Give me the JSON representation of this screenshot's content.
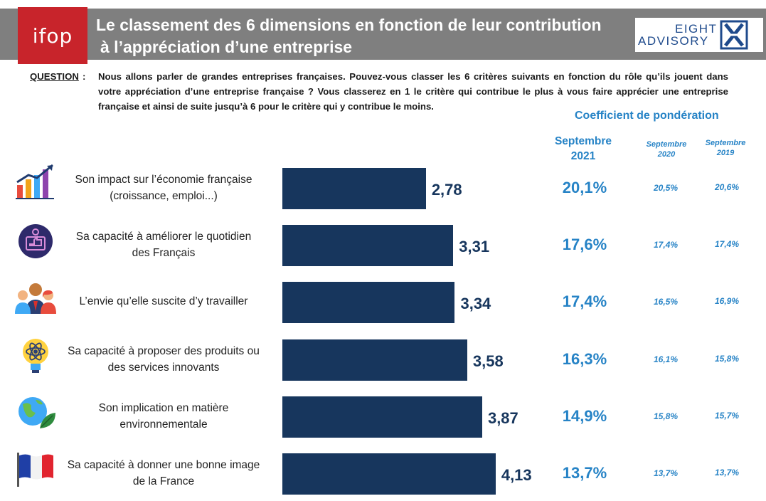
{
  "header": {
    "logo_left": "ifop",
    "title_line1": "Le classement des 6 dimensions en fonction de leur contribution",
    "title_line2": "à l’appréciation d’une entreprise",
    "logo_right_line1": "EIGHT",
    "logo_right_line2": "ADVISORY"
  },
  "question": {
    "label": "QUESTION",
    "colon": ":",
    "text": "Nous allons parler de grandes entreprises françaises. Pouvez-vous classer les 6 critères suivants en fonction du rôle qu’ils jouent dans votre appréciation d’une entreprise française ? Vous classerez en 1 le critère qui contribue le plus à vous faire apprécier une entreprise française et ainsi de suite jusqu’à 6 pour le critère qui y contribue le moins."
  },
  "table": {
    "coef_title": "Coefficient de pondération",
    "col_main_line1": "Septembre",
    "col_main_line2": "2021",
    "col_2020_line1": "Septembre",
    "col_2020_line2": "2020",
    "col_2019_line1": "Septembre",
    "col_2019_line2": "2019"
  },
  "colors": {
    "bar": "#17365d",
    "accent": "#2683c6",
    "header_band": "#7f7f7f",
    "ifop_red": "#c8242b"
  },
  "chart_data": {
    "type": "bar",
    "orientation": "horizontal",
    "categories": [
      "Son impact sur l’économie française (croissance, emploi...)",
      "Sa capacité à améliorer le quotidien des Français",
      "L’envie qu’elle suscite d’y travailler",
      "Sa capacité à proposer des produits ou des services innovants",
      "Son implication en matière environnementale",
      "Sa capacité à donner une bonne image de la France"
    ],
    "values": [
      2.78,
      3.31,
      3.34,
      3.58,
      3.87,
      4.13
    ],
    "value_labels": [
      "2,78",
      "3,31",
      "3,34",
      "3,58",
      "3,87",
      "4,13"
    ],
    "coef_2021": [
      "20,1%",
      "17,6%",
      "17,4%",
      "16,3%",
      "14,9%",
      "13,7%"
    ],
    "coef_2020": [
      "20,5%",
      "17,4%",
      "16,5%",
      "16,1%",
      "15,8%",
      "13,7%"
    ],
    "coef_2019": [
      "20,6%",
      "17,4%",
      "16,9%",
      "15,8%",
      "15,7%",
      "13,7%"
    ],
    "icons": [
      "growth-chart-icon",
      "thumbs-up-icon",
      "people-icon",
      "lightbulb-atom-icon",
      "globe-leaf-icon",
      "france-flag-icon"
    ],
    "rows": [
      {
        "label_line1": "Son impact sur l’économie française",
        "label_line2": "(croissance, emploi...)"
      },
      {
        "label_line1": "Sa capacité à améliorer le quotidien",
        "label_line2": "des Français"
      },
      {
        "label_line1": "L’envie qu’elle suscite d’y travailler",
        "label_line2": ""
      },
      {
        "label_line1": "Sa capacité à proposer des produits ou",
        "label_line2": "des services innovants"
      },
      {
        "label_line1": "Son implication en matière",
        "label_line2": "environnementale"
      },
      {
        "label_line1": "Sa capacité à donner une bonne image",
        "label_line2": "de la France"
      }
    ]
  }
}
